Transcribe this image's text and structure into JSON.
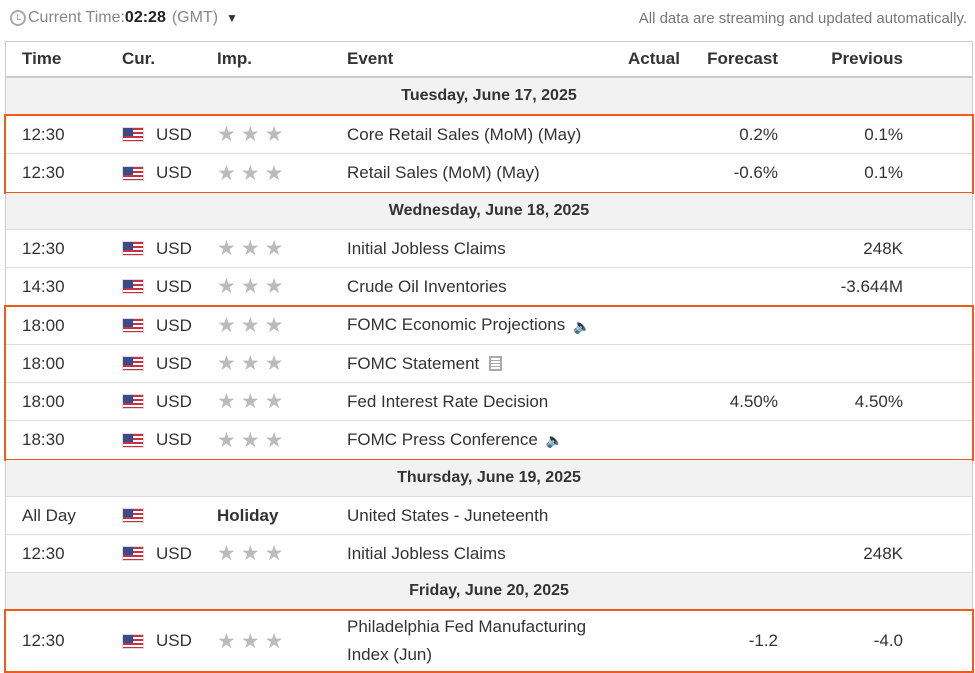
{
  "header": {
    "label": "Current Time:",
    "time": "02:28",
    "tz": "(GMT)",
    "note": "All data are streaming and updated automatically."
  },
  "columns": {
    "time": "Time",
    "cur": "Cur.",
    "imp": "Imp.",
    "event": "Event",
    "actual": "Actual",
    "forecast": "Forecast",
    "previous": "Previous"
  },
  "dates": [
    "Tuesday, June 17, 2025",
    "Wednesday, June 18, 2025",
    "Thursday, June 19, 2025",
    "Friday, June 20, 2025"
  ],
  "rows": [
    {
      "time": "12:30",
      "cur": "USD",
      "event": "Core Retail Sales (MoM) (May)",
      "actual": "",
      "forecast": "0.2%",
      "previous": "0.1%",
      "stars": 3
    },
    {
      "time": "12:30",
      "cur": "USD",
      "event": "Retail Sales (MoM) (May)",
      "actual": "",
      "forecast": "-0.6%",
      "previous": "0.1%",
      "stars": 3
    },
    {
      "time": "12:30",
      "cur": "USD",
      "event": "Initial Jobless Claims",
      "actual": "",
      "forecast": "",
      "previous": "248K",
      "stars": 3
    },
    {
      "time": "14:30",
      "cur": "USD",
      "event": "Crude Oil Inventories",
      "actual": "",
      "forecast": "",
      "previous": "-3.644M",
      "stars": 3
    },
    {
      "time": "18:00",
      "cur": "USD",
      "event": "FOMC Economic Projections",
      "actual": "",
      "forecast": "",
      "previous": "",
      "stars": 3,
      "icon": "speaker-icon"
    },
    {
      "time": "18:00",
      "cur": "USD",
      "event": "FOMC Statement",
      "actual": "",
      "forecast": "",
      "previous": "",
      "stars": 3,
      "icon": "document-icon"
    },
    {
      "time": "18:00",
      "cur": "USD",
      "event": "Fed Interest Rate Decision",
      "actual": "",
      "forecast": "4.50%",
      "previous": "4.50%",
      "stars": 3
    },
    {
      "time": "18:30",
      "cur": "USD",
      "event": "FOMC Press Conference",
      "actual": "",
      "forecast": "",
      "previous": "",
      "stars": 3,
      "icon": "speaker-icon"
    },
    {
      "time": "All Day",
      "cur": "",
      "imp": "Holiday",
      "event": "United States - Juneteenth",
      "actual": "",
      "forecast": "",
      "previous": ""
    },
    {
      "time": "12:30",
      "cur": "USD",
      "event": "Initial Jobless Claims",
      "actual": "",
      "forecast": "",
      "previous": "248K",
      "stars": 3
    },
    {
      "time": "12:30",
      "cur": "USD",
      "event": "Philadelphia Fed Manufacturing Index (Jun)",
      "actual": "",
      "forecast": "-1.2",
      "previous": "-4.0",
      "stars": 3
    }
  ],
  "highlight_color": "#f05a1a"
}
